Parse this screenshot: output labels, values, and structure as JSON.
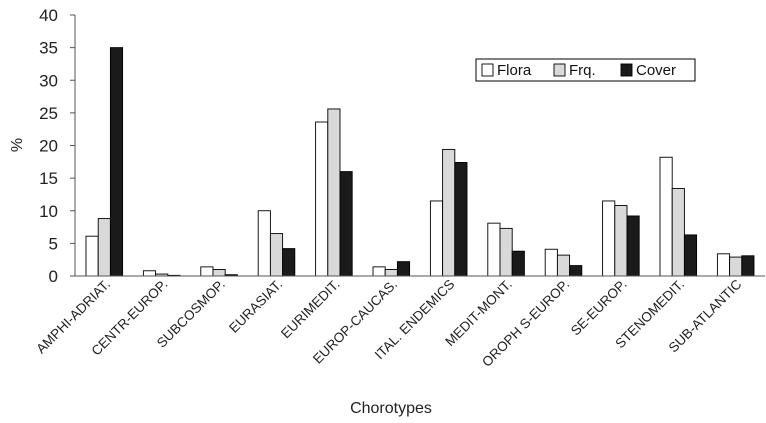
{
  "chart_data": {
    "type": "bar",
    "title": "",
    "xlabel": "Chorotypes",
    "ylabel": "%",
    "ylim": [
      0,
      40
    ],
    "yticks": [
      0,
      5,
      10,
      15,
      20,
      25,
      30,
      35,
      40
    ],
    "grid": false,
    "legend_position": "top-right",
    "categories": [
      "AMPHI-ADRIAT.",
      "CENTR-EUROP.",
      "SUBCOSMOP.",
      "EURASIAT.",
      "EURIMEDIT.",
      "EUROP-CAUCAS.",
      "ITAL. ENDEMICS",
      "MEDIT-MONT.",
      "OROPH S-EUROP.",
      "SE-EUROP.",
      "STENOMEDIT.",
      "SUB-ATLANTIC"
    ],
    "series": [
      {
        "name": "Flora",
        "color": "#ffffff",
        "values": [
          6.1,
          0.8,
          1.4,
          10.0,
          23.6,
          1.4,
          11.5,
          8.1,
          4.1,
          11.5,
          18.2,
          3.4
        ]
      },
      {
        "name": "Frq.",
        "color": "#d9d9d9",
        "values": [
          8.8,
          0.3,
          1.0,
          6.5,
          25.6,
          1.0,
          19.4,
          7.3,
          3.2,
          10.8,
          13.4,
          2.9
        ]
      },
      {
        "name": "Cover",
        "color": "#1a1a1a",
        "values": [
          35.0,
          0.1,
          0.2,
          4.2,
          16.0,
          2.2,
          17.4,
          3.8,
          1.6,
          9.2,
          6.3,
          3.1
        ]
      }
    ]
  }
}
